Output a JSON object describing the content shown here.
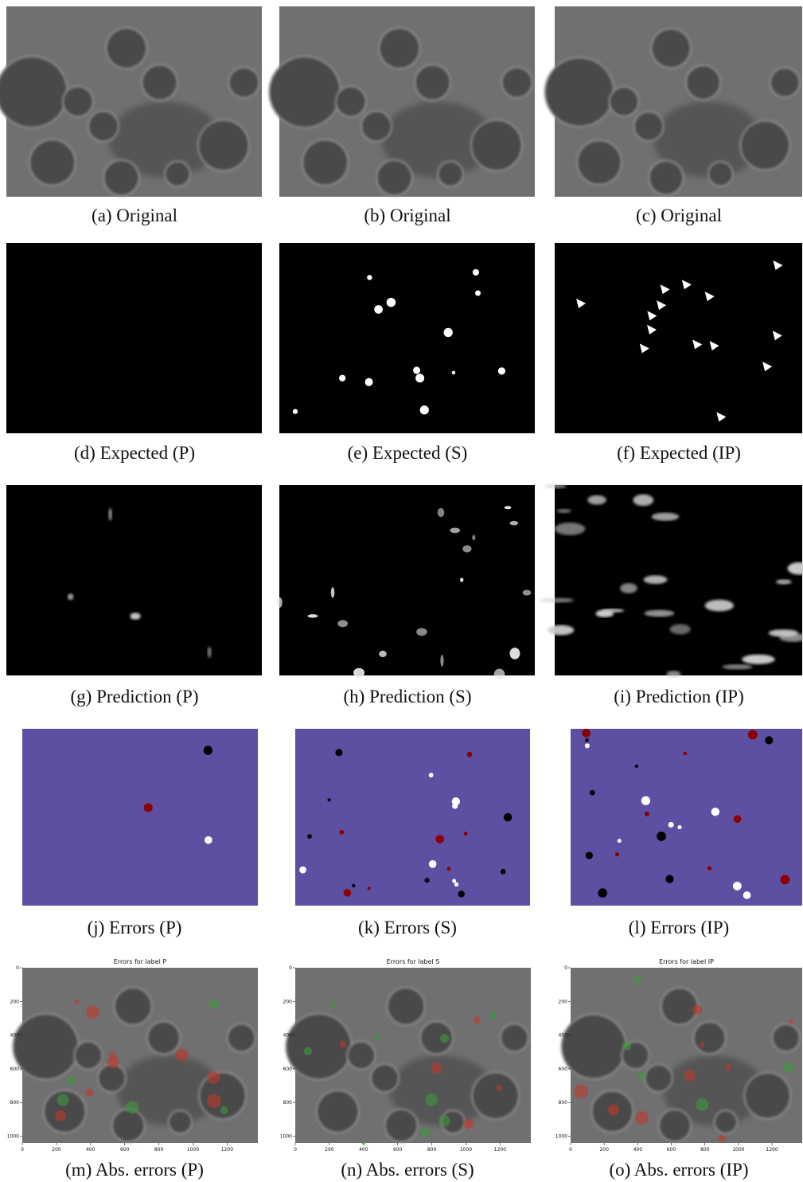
{
  "panels": [
    {
      "caption": "(a) Original"
    },
    {
      "caption": "(b) Original"
    },
    {
      "caption": "(c) Original"
    },
    {
      "caption": "(d) Expected (P)"
    },
    {
      "caption": "(e) Expected (S)"
    },
    {
      "caption": "(f) Expected (IP)"
    },
    {
      "caption": "(g) Prediction (P)"
    },
    {
      "caption": "(h) Prediction (S)"
    },
    {
      "caption": "(i) Prediction (IP)"
    },
    {
      "caption": "(j) Errors (P)"
    },
    {
      "caption": "(k) Errors (S)"
    },
    {
      "caption": "(l) Errors (IP)"
    },
    {
      "caption": "(m) Abs. errors (P)"
    },
    {
      "caption": "(n) Abs. errors (S)"
    },
    {
      "caption": "(o) Abs. errors (IP)"
    }
  ],
  "abs_error_plots": [
    {
      "title": "Errors for label P",
      "xticks": [
        0,
        200,
        400,
        600,
        800,
        1000,
        1200
      ],
      "yticks": [
        0,
        200,
        400,
        600,
        800,
        1000
      ]
    },
    {
      "title": "Errors for label S",
      "xticks": [
        0,
        200,
        400,
        600,
        800,
        1000,
        1200
      ],
      "yticks": [
        0,
        200,
        400,
        600,
        800,
        1000
      ]
    },
    {
      "title": "Errors for label IP",
      "xticks": [
        0,
        200,
        400,
        600,
        800,
        1000,
        1200
      ],
      "yticks": [
        0,
        200,
        400,
        600,
        800,
        1000
      ]
    }
  ]
}
